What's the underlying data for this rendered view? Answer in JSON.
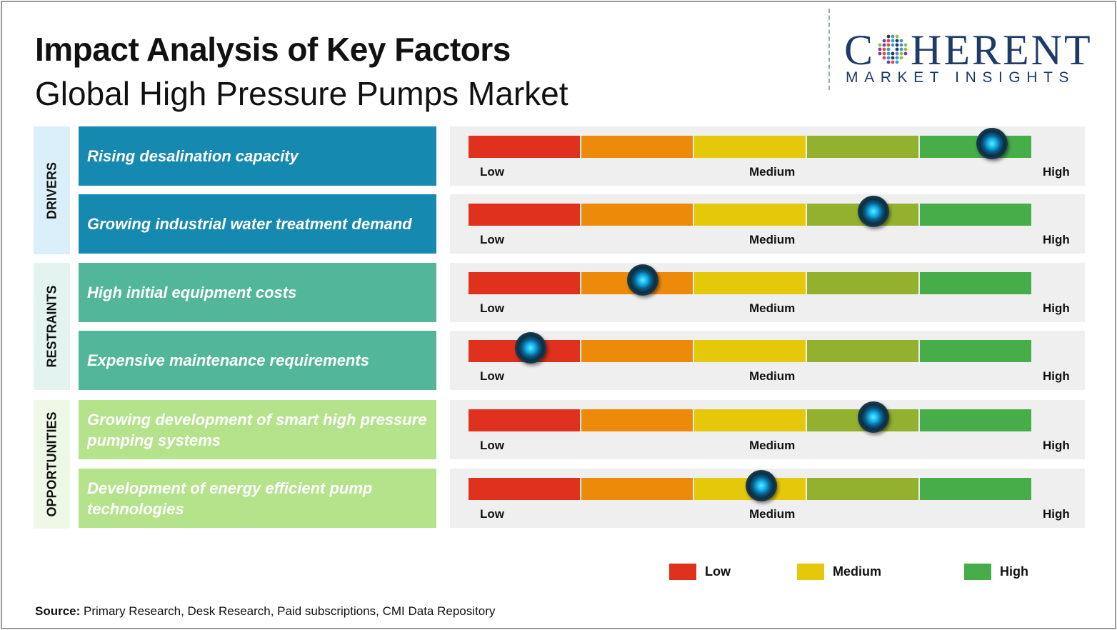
{
  "header": {
    "title": "Impact Analysis of Key Factors",
    "subtitle": "Global High Pressure Pumps Market"
  },
  "logo": {
    "main_left": "C",
    "main_right": "HERENT",
    "sub": "MARKET INSIGHTS"
  },
  "categories": [
    {
      "label": "DRIVERS",
      "bg": "#dbeffa"
    },
    {
      "label": "RESTRAINTS",
      "bg": "#e3f3ef"
    },
    {
      "label": "OPPORTUNITIES",
      "bg": "#eef8e6"
    }
  ],
  "scale_labels": {
    "low": "Low",
    "medium": "Medium",
    "high": "High"
  },
  "segment_colors": [
    "#e0301e",
    "#ee8a0a",
    "#e6c80a",
    "#93b12e",
    "#46ad48"
  ],
  "chart_data": {
    "type": "gauge",
    "scale": [
      "Low",
      "Medium",
      "High"
    ],
    "range": [
      0,
      1
    ],
    "factors": [
      {
        "category": "DRIVERS",
        "label": "Rising desalination capacity",
        "impact": 0.93,
        "color": "#1689b0"
      },
      {
        "category": "DRIVERS",
        "label": "Growing industrial water treatment demand",
        "impact": 0.72,
        "color": "#1689b0"
      },
      {
        "category": "RESTRAINTS",
        "label": "High initial equipment costs",
        "impact": 0.31,
        "color": "#52b79a"
      },
      {
        "category": "RESTRAINTS",
        "label": "Expensive maintenance requirements",
        "impact": 0.11,
        "color": "#52b79a"
      },
      {
        "category": "OPPORTUNITIES",
        "label": "Growing development of smart high pressure pumping systems",
        "impact": 0.72,
        "color": "#b5e38c"
      },
      {
        "category": "OPPORTUNITIES",
        "label": "Development of energy efficient pump technologies",
        "impact": 0.52,
        "color": "#b5e38c"
      }
    ]
  },
  "legend": [
    {
      "label": "Low",
      "color": "#e0301e"
    },
    {
      "label": "Medium",
      "color": "#e6c80a"
    },
    {
      "label": "High",
      "color": "#46ad48"
    }
  ],
  "source": {
    "label": "Source:",
    "text": "Primary Research, Desk Research, Paid subscriptions, CMI Data Repository"
  }
}
